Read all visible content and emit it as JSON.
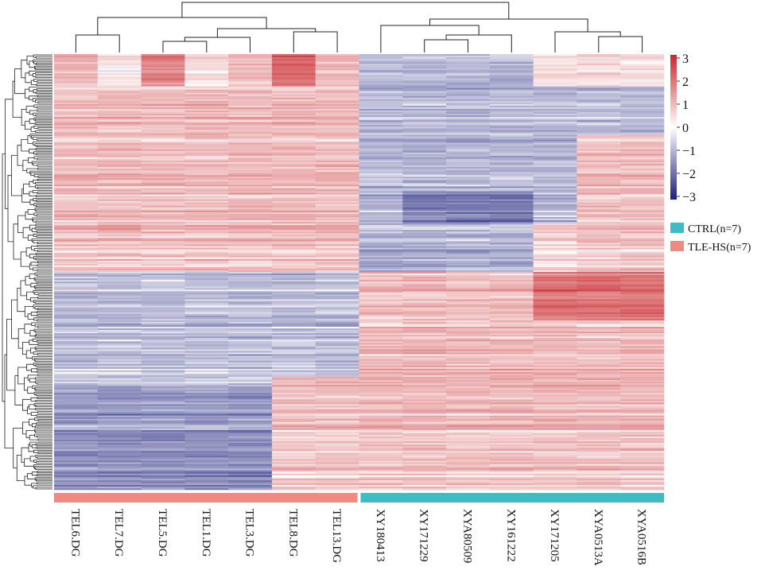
{
  "chart_data": {
    "type": "heatmap",
    "title": "",
    "columns": [
      "TEL6.DG",
      "TEL7.DG",
      "TEL5.DG",
      "TEL1.DG",
      "TEL3.DG",
      "TEL8.DG",
      "TEL13.DG",
      "XY180413",
      "XY171229",
      "XYA80509",
      "XY161222",
      "XY171205",
      "XYA0513A",
      "XYA0516B"
    ],
    "column_groups": [
      "TLE-HS(n=7)",
      "TLE-HS(n=7)",
      "TLE-HS(n=7)",
      "TLE-HS(n=7)",
      "TLE-HS(n=7)",
      "TLE-HS(n=7)",
      "TLE-HS(n=7)",
      "CTRL(n=7)",
      "CTRL(n=7)",
      "CTRL(n=7)",
      "CTRL(n=7)",
      "CTRL(n=7)",
      "CTRL(n=7)",
      "CTRL(n=7)"
    ],
    "row_count": 270,
    "color_scale": {
      "min": -3,
      "max": 3,
      "ticks": [
        "3",
        "2",
        "1",
        "0",
        "−1",
        "−2",
        "−3"
      ],
      "low_color": "#1c1f7a",
      "mid_color": "#ffffff",
      "high_color": "#c8282c"
    },
    "legend": [
      {
        "label": "CTRL(n=7)",
        "color": "#3fbcc3"
      },
      {
        "label": "TLE-HS(n=7)",
        "color": "#ee8a80"
      }
    ],
    "blocks": [
      {
        "rows": [
          0,
          135
        ],
        "cols": [
          0,
          6
        ],
        "mean": 0.75
      },
      {
        "rows": [
          0,
          20
        ],
        "cols": [
          2,
          2
        ],
        "mean": 1.5
      },
      {
        "rows": [
          0,
          20
        ],
        "cols": [
          5,
          5
        ],
        "mean": 1.9
      },
      {
        "rows": [
          0,
          20
        ],
        "cols": [
          1,
          1
        ],
        "mean": 0.2
      },
      {
        "rows": [
          0,
          20
        ],
        "cols": [
          3,
          3
        ],
        "mean": 0.3
      },
      {
        "rows": [
          135,
          270
        ],
        "cols": [
          0,
          6
        ],
        "mean": -0.7
      },
      {
        "rows": [
          205,
          270
        ],
        "cols": [
          0,
          4
        ],
        "mean": -1.2
      },
      {
        "rows": [
          200,
          270
        ],
        "cols": [
          5,
          6
        ],
        "mean": 0.7
      },
      {
        "rows": [
          0,
          135
        ],
        "cols": [
          7,
          13
        ],
        "mean": -0.8
      },
      {
        "rows": [
          0,
          20
        ],
        "cols": [
          11,
          13
        ],
        "mean": 0.3
      },
      {
        "rows": [
          50,
          135
        ],
        "cols": [
          12,
          13
        ],
        "mean": 0.7
      },
      {
        "rows": [
          105,
          135
        ],
        "cols": [
          11,
          11
        ],
        "mean": 0.5
      },
      {
        "rows": [
          85,
          105
        ],
        "cols": [
          8,
          10
        ],
        "mean": -1.6
      },
      {
        "rows": [
          135,
          270
        ],
        "cols": [
          7,
          13
        ],
        "mean": 0.75
      },
      {
        "rows": [
          135,
          165
        ],
        "cols": [
          11,
          13
        ],
        "mean": 1.8
      }
    ]
  }
}
